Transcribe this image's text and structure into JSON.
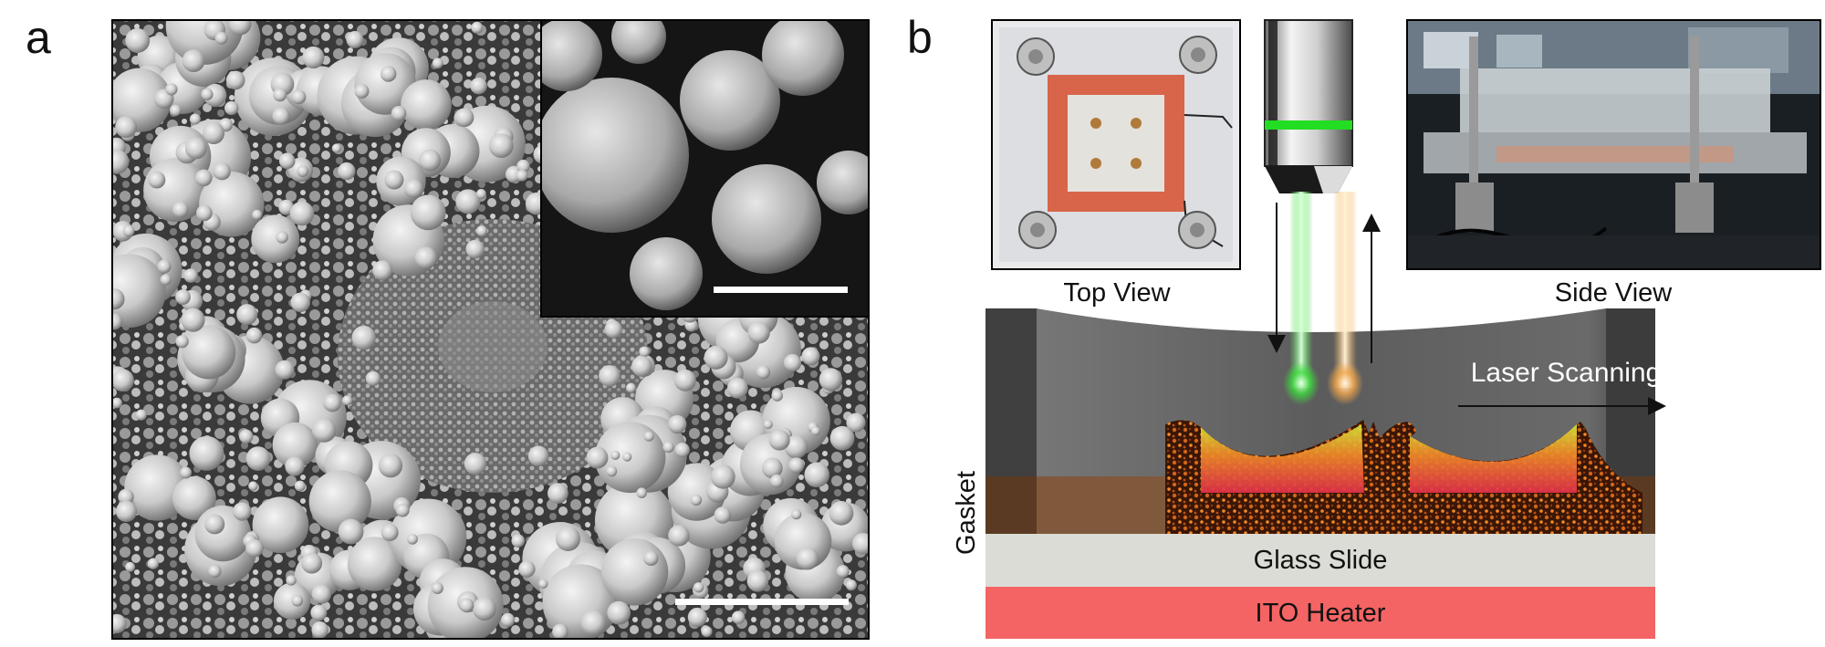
{
  "panels": {
    "a": {
      "label": "a"
    },
    "b": {
      "label": "b",
      "photos": {
        "top_view_caption": "Top View",
        "side_view_caption": "Side View"
      },
      "annotations": {
        "laser_scanning": "Laser Scanning",
        "gasket": "Gasket",
        "glass_slide": "Glass Slide",
        "ito_heater": "ITO Heater"
      }
    }
  },
  "colors": {
    "ito_heater": "#f46464",
    "glass_slide": "#dcdcd6",
    "gasket": "#5a3a22",
    "chamber": "#555555",
    "laser_in": "#3ddc3d",
    "laser_out": "#f2a64a",
    "gasket_red": "#d8654a"
  }
}
